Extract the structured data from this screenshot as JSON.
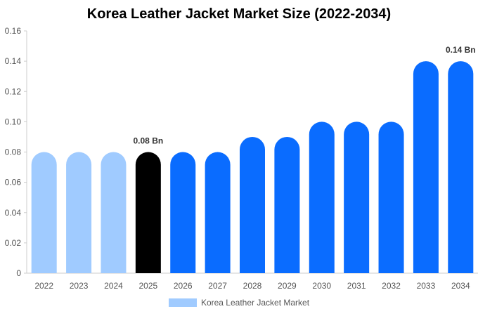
{
  "chart_data": {
    "type": "bar",
    "title": "Korea Leather Jacket Market Size (2022-2034)",
    "categories": [
      "2022",
      "2023",
      "2024",
      "2025",
      "2026",
      "2027",
      "2028",
      "2029",
      "2030",
      "2031",
      "2032",
      "2033",
      "2034"
    ],
    "series": [
      {
        "name": "Korea Leather Jacket Market",
        "values": [
          0.08,
          0.08,
          0.08,
          0.08,
          0.08,
          0.08,
          0.09,
          0.09,
          0.1,
          0.1,
          0.1,
          0.14,
          0.14
        ]
      }
    ],
    "ylim": [
      0,
      0.16
    ],
    "yticks": [
      "0",
      "0.02",
      "0.04",
      "0.06",
      "0.08",
      "0.10",
      "0.12",
      "0.14",
      "0.16"
    ],
    "xlabel": "",
    "ylabel": "",
    "data_labels": {
      "3": "0.08 Bn",
      "12": "0.14 Bn"
    },
    "bar_colors": [
      "#a0cbff",
      "#a0cbff",
      "#a0cbff",
      "#000000",
      "#0a6cff",
      "#0a6cff",
      "#0a6cff",
      "#0a6cff",
      "#0a6cff",
      "#0a6cff",
      "#0a6cff",
      "#0a6cff",
      "#0a6cff"
    ],
    "legend_color": "#a0cbff",
    "grid": false,
    "legend_position": "bottom"
  }
}
